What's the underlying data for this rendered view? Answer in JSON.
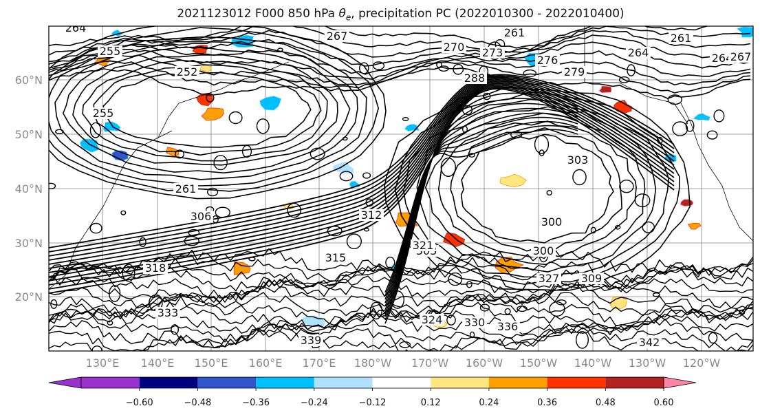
{
  "title": {
    "prefix": "2021123012 F000 850 hPa ",
    "symbol": "θ",
    "subscript": "e",
    "suffix": ", precipitation PC (2022010300 - 2022010400)"
  },
  "lat_labels": [
    "60°N",
    "50°N",
    "40°N",
    "30°N",
    "20°N"
  ],
  "lon_labels": [
    "130°E",
    "140°E",
    "150°E",
    "160°E",
    "170°E",
    "180°W",
    "170°W",
    "160°W",
    "150°W",
    "140°W",
    "130°W",
    "120°W"
  ],
  "contour_labels": [
    "264",
    "267",
    "261",
    "270",
    "273",
    "261",
    "264",
    "255",
    "252",
    "276",
    "279",
    "288",
    "264",
    "267",
    "255",
    "261",
    "300",
    "303",
    "300",
    "303",
    "306",
    "309",
    "312",
    "315",
    "318",
    "321",
    "324",
    "327",
    "330",
    "333",
    "336",
    "339",
    "342"
  ],
  "colorbar": {
    "colors": [
      "#9933cc",
      "#000080",
      "#3355cc",
      "#00bfff",
      "#b0e2ff",
      "#ffffff",
      "#ffe680",
      "#ff9f00",
      "#ff3300",
      "#b22222",
      "#ff85a8"
    ],
    "ticks": [
      "−0.60",
      "−0.48",
      "−0.36",
      "−0.24",
      "−0.12",
      "0.12",
      "0.24",
      "0.36",
      "0.48",
      "0.60"
    ]
  },
  "palette": {
    "contour": "#000000",
    "grid": "#808080",
    "tick_text": "#8a8a8a"
  }
}
